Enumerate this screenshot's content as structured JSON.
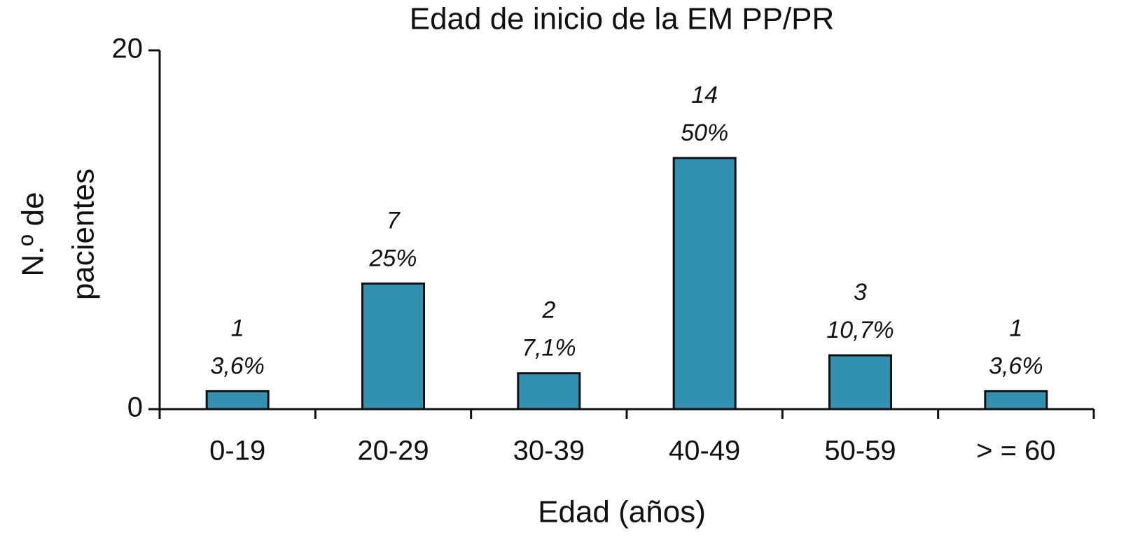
{
  "chart_data": {
    "type": "bar",
    "title": "Edad de inicio de la EM PP/PR",
    "x_label": "Edad (años)",
    "y_label": [
      "N.º de",
      "pacientes"
    ],
    "categories": [
      "0-19",
      "20-29",
      "30-39",
      "40-49",
      "50-59",
      "> = 60"
    ],
    "values": [
      1,
      7,
      2,
      14,
      3,
      1
    ],
    "percentages": [
      3.6,
      25,
      7.1,
      50,
      10.7,
      3.6
    ],
    "percentage_labels": [
      "3,6%",
      "25%",
      "7,1%",
      "50%",
      "10,7%",
      "3,6%"
    ],
    "color": "#3291b1",
    "ylim": [
      0,
      20
    ],
    "yticks": [
      0,
      20
    ],
    "grid": false
  }
}
